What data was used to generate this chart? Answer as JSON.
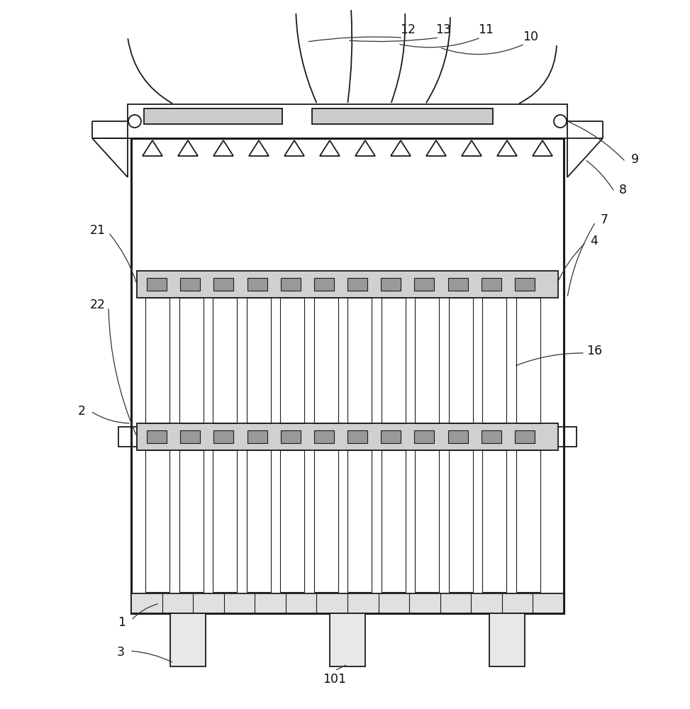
{
  "bg_color": "#ffffff",
  "line_color": "#1a1a1a",
  "lw": 1.3,
  "tlw": 2.2,
  "fig_width": 9.73,
  "fig_height": 10.0,
  "label_fontsize": 12.5
}
